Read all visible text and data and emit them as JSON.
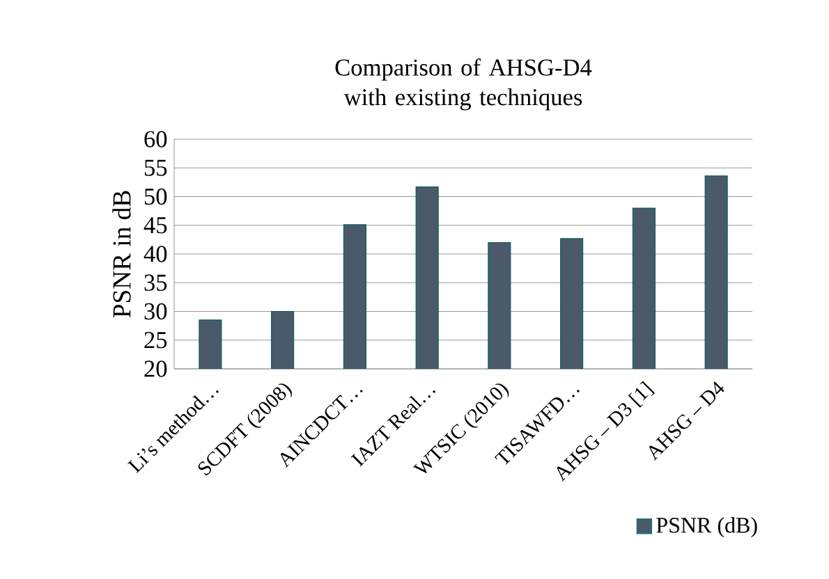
{
  "chart_data": {
    "type": "bar",
    "title": "Comparison of AHSG-D4 with existing techniques",
    "ylabel": "PSNR in dB",
    "categories": [
      "Li’s method…",
      "SCDFT (2008)",
      "AINCDCT…",
      "IAZT Real…",
      "WTSIC (2010)",
      "TISAWFD…",
      "AHSG – D3 [1]",
      "AHSG – D4"
    ],
    "series": [
      {
        "name": "PSNR (dB)",
        "color": "#4a5a6a",
        "values": [
          28.5,
          30,
          45.1,
          51.7,
          42,
          42.7,
          48,
          53.6
        ]
      }
    ],
    "ylim": [
      20,
      60
    ],
    "yticks": [
      20,
      25,
      30,
      35,
      40,
      45,
      50,
      55,
      60
    ],
    "grid": "y",
    "legend": "bottom right"
  }
}
